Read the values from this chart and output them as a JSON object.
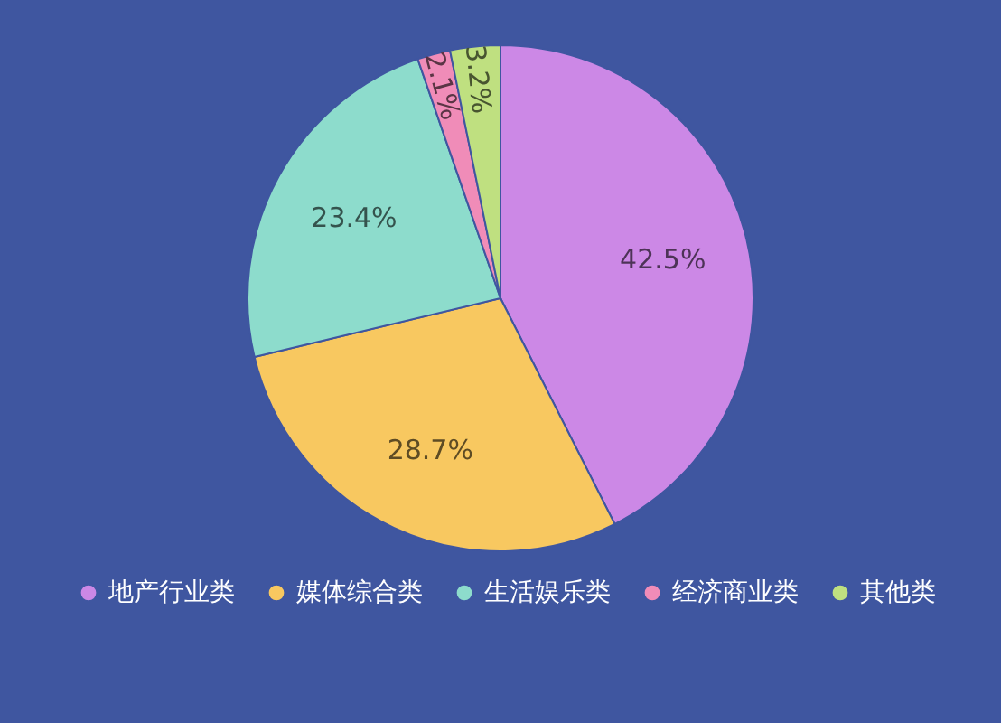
{
  "chart_data": {
    "type": "pie",
    "categories": [
      "地产行业类",
      "媒体综合类",
      "生活娱乐类",
      "经济商业类",
      "其他类"
    ],
    "values": [
      42.5,
      28.7,
      23.4,
      2.1,
      3.2
    ],
    "colors": [
      "#cc88e6",
      "#f8c860",
      "#8ddccc",
      "#f08cb8",
      "#bfe080"
    ],
    "value_labels": [
      "42.5%",
      "28.7%",
      "23.4%",
      "2.1%",
      "3.2%"
    ],
    "legend": "bottom"
  }
}
